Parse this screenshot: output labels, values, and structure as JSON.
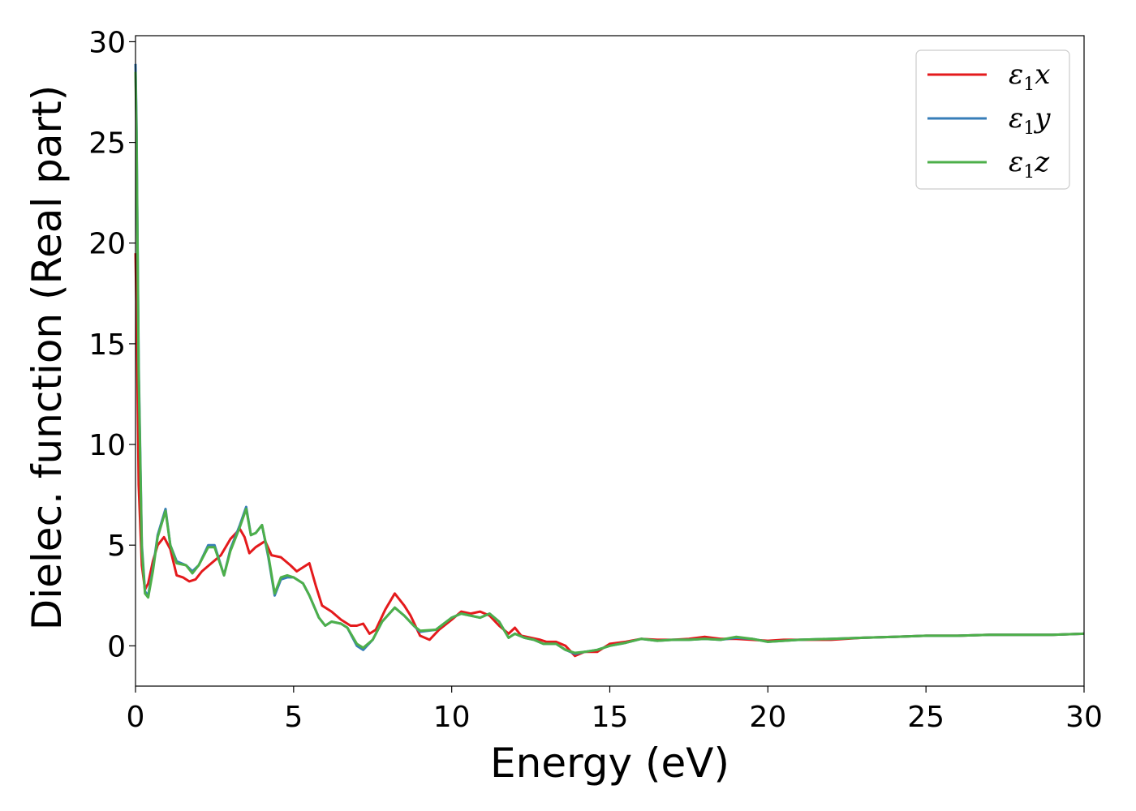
{
  "chart_data": {
    "type": "line",
    "xlabel": "Energy (eV)",
    "ylabel": "Dielec. function (Real part)",
    "xlim": [
      0,
      30
    ],
    "ylim": [
      -2,
      30.3
    ],
    "xticks": [
      0,
      5,
      10,
      15,
      20,
      25,
      30
    ],
    "yticks": [
      0,
      5,
      10,
      15,
      20,
      25,
      30
    ],
    "xtick_labels": [
      "0",
      "5",
      "10",
      "15",
      "20",
      "25",
      "30"
    ],
    "ytick_labels": [
      "0",
      "5",
      "10",
      "15",
      "20",
      "25",
      "30"
    ],
    "grid": false,
    "legend_position": "top-right",
    "series": [
      {
        "name": "ε1x",
        "legend_main": "ε",
        "legend_sub": "1",
        "legend_tail": "x",
        "color": "#e41a1c",
        "x": [
          0,
          0.05,
          0.1,
          0.2,
          0.3,
          0.4,
          0.55,
          0.7,
          0.9,
          1.1,
          1.3,
          1.5,
          1.7,
          1.9,
          2.1,
          2.4,
          2.7,
          3.0,
          3.3,
          3.45,
          3.6,
          3.8,
          4.1,
          4.3,
          4.6,
          4.9,
          5.1,
          5.3,
          5.5,
          5.7,
          5.9,
          6.2,
          6.5,
          6.8,
          7.0,
          7.2,
          7.4,
          7.6,
          7.9,
          8.2,
          8.5,
          8.7,
          9.0,
          9.3,
          9.6,
          10.0,
          10.3,
          10.6,
          10.9,
          11.2,
          11.5,
          11.8,
          12.0,
          12.2,
          12.5,
          12.8,
          13.0,
          13.3,
          13.6,
          13.9,
          14.2,
          14.6,
          15.0,
          15.5,
          16.0,
          16.5,
          17.0,
          17.5,
          18.0,
          18.5,
          19.0,
          19.5,
          20.0,
          20.5,
          21.0,
          22.0,
          23.0,
          24.0,
          25.0,
          26.0,
          27.0,
          28.0,
          29.0,
          30.0
        ],
        "y": [
          19.5,
          15,
          8,
          4,
          2.8,
          3.1,
          4.2,
          5.0,
          5.4,
          4.8,
          3.5,
          3.4,
          3.2,
          3.3,
          3.7,
          4.1,
          4.5,
          5.3,
          5.8,
          5.4,
          4.6,
          4.9,
          5.2,
          4.5,
          4.4,
          4.0,
          3.7,
          3.9,
          4.1,
          3.0,
          2.0,
          1.7,
          1.3,
          1.0,
          1.0,
          1.1,
          0.6,
          0.8,
          1.8,
          2.6,
          2.0,
          1.5,
          0.5,
          0.3,
          0.8,
          1.3,
          1.7,
          1.6,
          1.7,
          1.5,
          1.0,
          0.6,
          0.9,
          0.5,
          0.4,
          0.3,
          0.2,
          0.2,
          0.0,
          -0.5,
          -0.3,
          -0.3,
          0.1,
          0.2,
          0.35,
          0.3,
          0.3,
          0.35,
          0.45,
          0.35,
          0.35,
          0.3,
          0.25,
          0.3,
          0.3,
          0.3,
          0.4,
          0.45,
          0.5,
          0.5,
          0.55,
          0.55,
          0.55,
          0.6
        ]
      },
      {
        "name": "ε1y",
        "legend_main": "ε",
        "legend_sub": "1",
        "legend_tail": "y",
        "color": "#377eb8",
        "x": [
          0,
          0.03,
          0.1,
          0.2,
          0.3,
          0.4,
          0.55,
          0.7,
          0.95,
          1.1,
          1.3,
          1.6,
          1.8,
          2.0,
          2.3,
          2.5,
          2.8,
          3.0,
          3.3,
          3.5,
          3.65,
          3.8,
          4.0,
          4.2,
          4.4,
          4.6,
          4.8,
          5.0,
          5.3,
          5.5,
          5.8,
          6.0,
          6.2,
          6.5,
          6.7,
          7.0,
          7.2,
          7.5,
          7.8,
          8.2,
          8.5,
          8.8,
          9.0,
          9.5,
          10.0,
          10.3,
          10.6,
          10.9,
          11.2,
          11.5,
          11.8,
          12.0,
          12.3,
          12.6,
          12.9,
          13.3,
          13.6,
          13.9,
          14.2,
          14.6,
          15.0,
          15.5,
          16.0,
          16.5,
          17.0,
          17.5,
          18.0,
          18.5,
          19.0,
          19.5,
          20.0,
          21.0,
          22.0,
          23.0,
          24.0,
          25.0,
          26.0,
          27.0,
          28.0,
          29.0,
          30.0
        ],
        "y": [
          28.9,
          26,
          14,
          5,
          2.7,
          2.5,
          3.8,
          5.5,
          6.8,
          5.0,
          4.2,
          4.0,
          3.7,
          4.0,
          5.0,
          5.0,
          3.5,
          4.8,
          6.0,
          6.9,
          5.5,
          5.6,
          6.0,
          4.4,
          2.5,
          3.3,
          3.4,
          3.4,
          3.1,
          2.5,
          1.4,
          1.0,
          1.2,
          1.1,
          0.9,
          0.0,
          -0.2,
          0.3,
          1.2,
          1.9,
          1.5,
          1.0,
          0.7,
          0.8,
          1.4,
          1.6,
          1.5,
          1.4,
          1.6,
          1.2,
          0.4,
          0.6,
          0.4,
          0.3,
          0.1,
          0.1,
          -0.2,
          -0.4,
          -0.3,
          -0.2,
          0.0,
          0.15,
          0.35,
          0.25,
          0.3,
          0.3,
          0.35,
          0.3,
          0.4,
          0.35,
          0.2,
          0.3,
          0.35,
          0.4,
          0.45,
          0.5,
          0.5,
          0.55,
          0.55,
          0.55,
          0.6
        ]
      },
      {
        "name": "ε1z",
        "legend_main": "ε",
        "legend_sub": "1",
        "legend_tail": "z",
        "color": "#4daf4a",
        "x": [
          0,
          0.03,
          0.1,
          0.2,
          0.3,
          0.4,
          0.55,
          0.7,
          0.95,
          1.1,
          1.3,
          1.6,
          1.8,
          2.0,
          2.3,
          2.5,
          2.8,
          3.0,
          3.3,
          3.5,
          3.65,
          3.8,
          4.0,
          4.2,
          4.4,
          4.6,
          4.8,
          5.0,
          5.3,
          5.5,
          5.8,
          6.0,
          6.2,
          6.5,
          6.7,
          7.0,
          7.2,
          7.5,
          7.8,
          8.2,
          8.5,
          8.8,
          9.0,
          9.5,
          10.0,
          10.3,
          10.6,
          10.9,
          11.2,
          11.5,
          11.8,
          12.0,
          12.3,
          12.6,
          12.9,
          13.3,
          13.6,
          13.9,
          14.2,
          14.6,
          15.0,
          15.5,
          16.0,
          16.5,
          17.0,
          17.5,
          18.0,
          18.5,
          19.0,
          19.5,
          20.0,
          21.0,
          22.0,
          23.0,
          24.0,
          25.0,
          26.0,
          27.0,
          28.0,
          29.0,
          30.0
        ],
        "y": [
          28.5,
          25.5,
          13.5,
          4.8,
          2.6,
          2.4,
          3.7,
          5.4,
          6.7,
          5.0,
          4.1,
          4.0,
          3.6,
          4.0,
          4.9,
          4.9,
          3.5,
          4.7,
          5.9,
          6.8,
          5.5,
          5.6,
          6.0,
          4.5,
          2.6,
          3.4,
          3.5,
          3.4,
          3.1,
          2.5,
          1.4,
          1.0,
          1.2,
          1.1,
          0.9,
          0.1,
          -0.1,
          0.3,
          1.2,
          1.9,
          1.5,
          1.0,
          0.75,
          0.8,
          1.4,
          1.6,
          1.5,
          1.4,
          1.6,
          1.2,
          0.4,
          0.6,
          0.4,
          0.3,
          0.1,
          0.1,
          -0.2,
          -0.35,
          -0.3,
          -0.2,
          0.0,
          0.15,
          0.35,
          0.25,
          0.3,
          0.3,
          0.35,
          0.3,
          0.45,
          0.35,
          0.2,
          0.3,
          0.35,
          0.4,
          0.45,
          0.5,
          0.5,
          0.55,
          0.55,
          0.55,
          0.6
        ]
      }
    ]
  }
}
